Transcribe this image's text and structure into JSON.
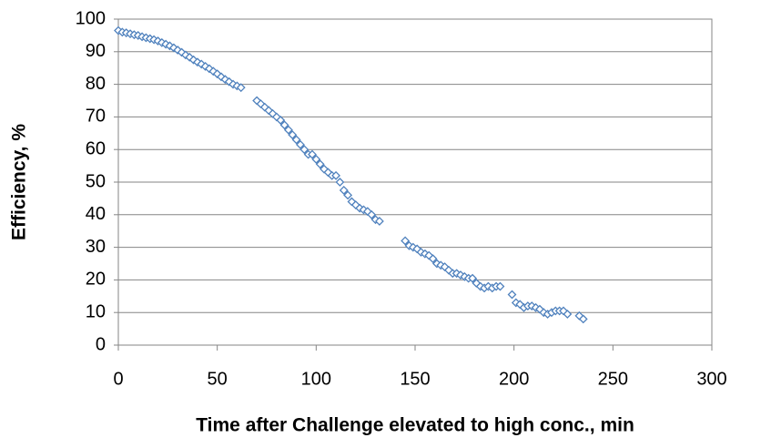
{
  "chart_data": {
    "type": "scatter",
    "xlabel": "Time after Challenge elevated to high conc., min",
    "ylabel": "Efficiency, %",
    "color": "#4f81bd",
    "grid": true,
    "xlim": [
      0,
      300
    ],
    "xticks": [
      0,
      50,
      100,
      150,
      200,
      250,
      300
    ],
    "ylim": [
      0,
      100
    ],
    "yticks": [
      0,
      10,
      20,
      30,
      40,
      50,
      60,
      70,
      80,
      90,
      100
    ],
    "x": [
      0,
      2,
      4,
      6,
      8,
      10,
      12,
      14,
      16,
      18,
      20,
      22,
      24,
      26,
      28,
      30,
      32,
      34,
      36,
      38,
      40,
      42,
      44,
      46,
      48,
      50,
      52,
      54,
      56,
      58,
      60,
      62,
      70,
      72,
      74,
      76,
      78,
      80,
      82,
      84,
      86,
      88,
      90,
      92,
      94,
      96,
      98,
      100,
      102,
      104,
      106,
      108,
      110,
      112,
      114,
      116,
      118,
      120,
      122,
      124,
      126,
      128,
      130,
      132,
      145,
      147,
      149,
      151,
      153,
      155,
      157,
      159,
      161,
      163,
      165,
      167,
      169,
      171,
      173,
      175,
      177,
      179,
      181,
      183,
      185,
      187,
      189,
      191,
      193,
      199,
      201,
      203,
      205,
      207,
      209,
      211,
      213,
      215,
      217,
      219,
      221,
      223,
      225,
      227,
      233,
      235
    ],
    "values": [
      96.5,
      96,
      95.8,
      95.5,
      95.2,
      95,
      94.6,
      94.3,
      94,
      93.7,
      93.3,
      92.8,
      92.3,
      91.8,
      91.2,
      90.5,
      89.8,
      89,
      88.3,
      87.5,
      86.8,
      86.2,
      85.5,
      84.8,
      84,
      83.2,
      82.3,
      81.5,
      80.8,
      80,
      79.5,
      79,
      75,
      74,
      73,
      72,
      71,
      70,
      69,
      67.5,
      66,
      64.5,
      63,
      61.5,
      60,
      58.5,
      58.5,
      57,
      55.5,
      54,
      53,
      52,
      52,
      50,
      47.5,
      46,
      44,
      43,
      42,
      41.5,
      41,
      40,
      38.5,
      38,
      32,
      30.5,
      30,
      29.5,
      28.5,
      28,
      27.5,
      26.5,
      25,
      24.5,
      24,
      23,
      22,
      22,
      21.5,
      21,
      20.5,
      20.5,
      19,
      18,
      17.5,
      18,
      17.5,
      18,
      18,
      15.5,
      13,
      12.5,
      11.5,
      12,
      12,
      11.5,
      11,
      10,
      9.5,
      10,
      10.5,
      10.5,
      10.5,
      9.5,
      9,
      8
    ]
  }
}
